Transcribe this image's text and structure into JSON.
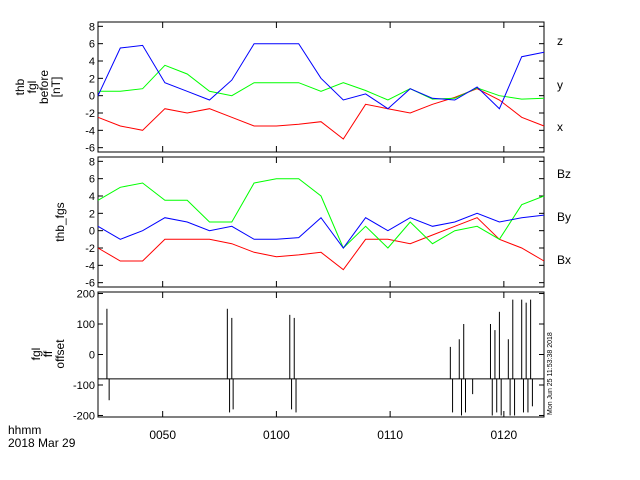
{
  "chart_data": [
    {
      "type": "line",
      "ylabel_lines": [
        "thb",
        "fgl",
        "before",
        "[nT]"
      ],
      "ylim": [
        -6.5,
        8.5
      ],
      "yticks": [
        -6,
        -4,
        -2,
        0,
        2,
        4,
        6,
        8
      ],
      "series": [
        {
          "name": "z",
          "color": "#ff0000"
        },
        {
          "name": "y",
          "color": "#00ff00"
        },
        {
          "name": "x",
          "color": "#0000ff"
        }
      ],
      "x": [
        0,
        5,
        10,
        15,
        20,
        25,
        30,
        35,
        40,
        45,
        50,
        55,
        60,
        65,
        70,
        75,
        80,
        85,
        90,
        95,
        100
      ],
      "values": {
        "x": [
          0.0,
          5.5,
          5.8,
          1.5,
          0.5,
          -0.5,
          1.8,
          6.0,
          6.0,
          6.0,
          2.0,
          -0.5,
          0.2,
          -1.5,
          0.8,
          -0.3,
          -0.5,
          1.0,
          -1.5,
          4.5,
          5.0
        ],
        "y": [
          0.5,
          0.5,
          0.8,
          3.5,
          2.5,
          0.5,
          0.0,
          1.5,
          1.5,
          1.5,
          0.5,
          1.5,
          0.6,
          -0.5,
          0.8,
          -0.4,
          -0.3,
          0.9,
          0.0,
          -0.4,
          -0.3
        ],
        "z": [
          -2.5,
          -3.5,
          -4.0,
          -1.5,
          -2.0,
          -1.5,
          -2.5,
          -3.5,
          -3.5,
          -3.3,
          -3.0,
          -5.0,
          -1.0,
          -1.5,
          -2.0,
          -1.0,
          -0.2,
          0.8,
          -0.5,
          -2.5,
          -3.5
        ]
      }
    },
    {
      "type": "line",
      "ylabel": "thb_fgs",
      "ylim": [
        -6.5,
        8.5
      ],
      "yticks": [
        -6,
        -4,
        -2,
        0,
        2,
        4,
        6,
        8
      ],
      "series": [
        {
          "name": "Bz",
          "color": "#ff0000"
        },
        {
          "name": "By",
          "color": "#00ff00"
        },
        {
          "name": "Bx",
          "color": "#0000ff"
        }
      ],
      "x": [
        0,
        5,
        10,
        15,
        20,
        25,
        30,
        35,
        40,
        45,
        50,
        55,
        60,
        65,
        70,
        75,
        80,
        85,
        90,
        95,
        100
      ],
      "values": {
        "Bx": [
          0.5,
          -1.0,
          0.0,
          1.5,
          1.0,
          0.0,
          0.5,
          -1.0,
          -1.0,
          -0.8,
          1.5,
          -2.0,
          1.5,
          0.0,
          1.5,
          0.5,
          1.0,
          2.0,
          1.0,
          1.5,
          1.8
        ],
        "By": [
          3.5,
          5.0,
          5.5,
          3.5,
          3.5,
          1.0,
          1.0,
          5.5,
          6.0,
          6.0,
          4.0,
          -2.0,
          0.5,
          -2.0,
          1.0,
          -1.5,
          0.0,
          0.5,
          -1.0,
          3.0,
          4.0
        ],
        "Bz": [
          -2.0,
          -3.5,
          -3.5,
          -1.0,
          -1.0,
          -1.0,
          -1.5,
          -2.5,
          -3.0,
          -2.8,
          -2.5,
          -4.5,
          -1.0,
          -1.0,
          -1.5,
          -0.5,
          0.5,
          1.5,
          -1.0,
          -2.0,
          -3.5
        ]
      }
    },
    {
      "type": "line",
      "ylabel_lines": [
        "fgl",
        "ff",
        "offset"
      ],
      "ylim": [
        -205,
        205
      ],
      "yticks": [
        -200,
        -100,
        0,
        100,
        200
      ],
      "baseline": -80,
      "spikes": [
        {
          "x": 2,
          "y": 150
        },
        {
          "x": 2.5,
          "y": -150
        },
        {
          "x": 29,
          "y": 150
        },
        {
          "x": 29.5,
          "y": -190
        },
        {
          "x": 30,
          "y": 120
        },
        {
          "x": 30.3,
          "y": -180
        },
        {
          "x": 43,
          "y": 130
        },
        {
          "x": 43.4,
          "y": -180
        },
        {
          "x": 44,
          "y": 120
        },
        {
          "x": 44.4,
          "y": -190
        },
        {
          "x": 79,
          "y": 25
        },
        {
          "x": 79.5,
          "y": -190
        },
        {
          "x": 81,
          "y": 50
        },
        {
          "x": 81.5,
          "y": -200
        },
        {
          "x": 82,
          "y": 100
        },
        {
          "x": 82.4,
          "y": -190
        },
        {
          "x": 84,
          "y": -130
        },
        {
          "x": 88,
          "y": 100
        },
        {
          "x": 88.4,
          "y": -200
        },
        {
          "x": 89,
          "y": 80
        },
        {
          "x": 89.4,
          "y": -190
        },
        {
          "x": 90,
          "y": 140
        },
        {
          "x": 90.4,
          "y": -200
        },
        {
          "x": 92,
          "y": 50
        },
        {
          "x": 92.4,
          "y": -200
        },
        {
          "x": 93,
          "y": 180
        },
        {
          "x": 93.4,
          "y": -200
        },
        {
          "x": 95,
          "y": 180
        },
        {
          "x": 95.4,
          "y": -190
        },
        {
          "x": 96,
          "y": 170
        },
        {
          "x": 96.4,
          "y": -190
        },
        {
          "x": 97,
          "y": 180
        },
        {
          "x": 97.4,
          "y": -170
        }
      ]
    }
  ],
  "x_axis": {
    "ticks": [
      {
        "x": 14.5,
        "label": "0050"
      },
      {
        "x": 40.0,
        "label": "0100"
      },
      {
        "x": 65.5,
        "label": "0110"
      },
      {
        "x": 91.0,
        "label": "0120"
      }
    ],
    "label_lines": [
      "hhmm",
      "2018 Mar 29"
    ]
  },
  "stamp": "Mon Jun 25 11:53:38 2018"
}
